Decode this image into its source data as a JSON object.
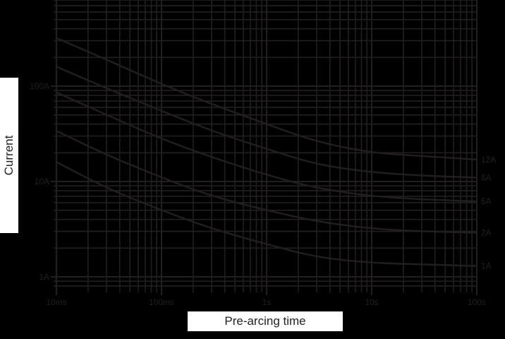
{
  "chart_data": {
    "type": "line",
    "title": "",
    "xlabel": "Pre-arcing time",
    "ylabel": "Current",
    "x_scale": "log",
    "y_scale": "log",
    "x_tick_labels": [
      "10ms",
      "100ms",
      "1s",
      "10s",
      "100s"
    ],
    "x_tick_values_s": [
      0.01,
      0.1,
      1,
      10,
      100
    ],
    "y_tick_labels": [
      "1A",
      "10A",
      "100A"
    ],
    "y_tick_values_A": [
      1,
      10,
      100
    ],
    "xlim_s": [
      0.01,
      100
    ],
    "ylim_A": [
      0.8,
      1100
    ],
    "grid": true,
    "legend_position": "right (inline curve labels)",
    "x": [
      0.01,
      0.03,
      0.1,
      0.3,
      1,
      3,
      10,
      30,
      100
    ],
    "series": [
      {
        "name": "12A",
        "values": [
          320,
          190,
          105,
          65,
          40,
          26,
          20,
          18.5,
          17
        ]
      },
      {
        "name": "8A",
        "values": [
          160,
          95,
          55,
          34,
          22,
          15,
          12.5,
          11.5,
          11
        ]
      },
      {
        "name": "5A",
        "values": [
          86,
          50,
          28,
          18,
          11.7,
          8.5,
          7,
          6.5,
          6.2
        ]
      },
      {
        "name": "2A",
        "values": [
          34,
          19,
          11,
          7,
          5,
          3.8,
          3.2,
          3.0,
          2.9
        ]
      },
      {
        "name": "1A",
        "values": [
          16,
          8.5,
          5,
          3.2,
          2.2,
          1.6,
          1.4,
          1.35,
          1.3
        ]
      }
    ]
  },
  "labels": {
    "ylabel": "Current",
    "xlabel": "Pre-arcing time"
  },
  "colors": {
    "background": "#000000",
    "lines": "#231f20",
    "label_box": "#ffffff"
  }
}
